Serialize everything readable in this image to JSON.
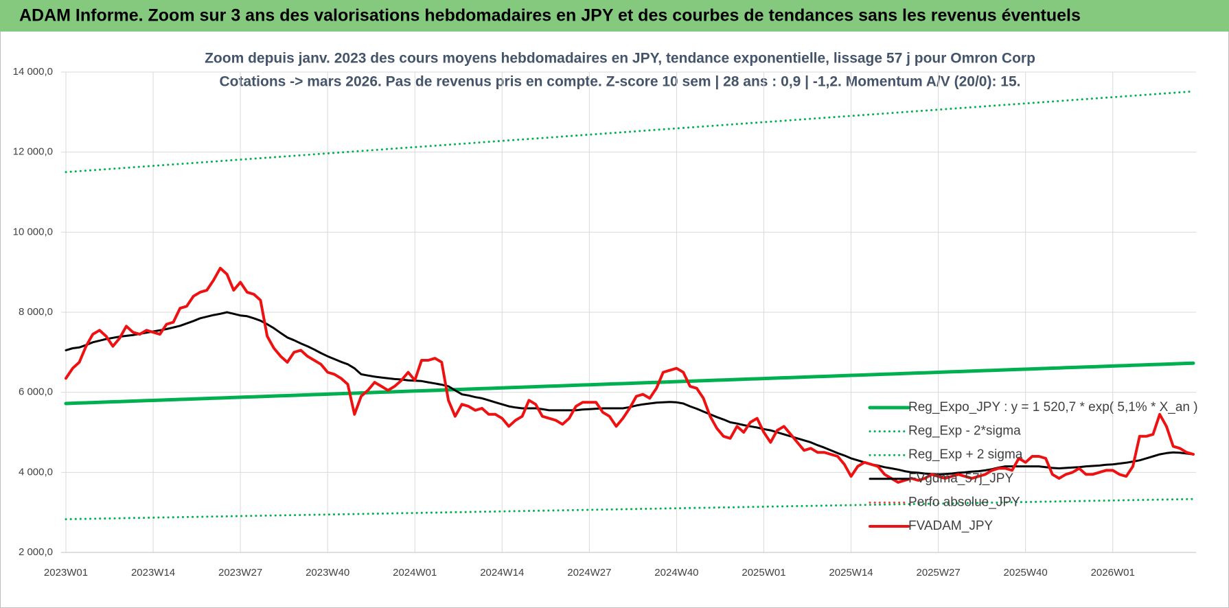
{
  "header": {
    "title": "ADAM Informe. Zoom sur 3 ans des valorisations hebdomadaires en JPY et des courbes de tendances sans les revenus éventuels"
  },
  "chart_data": {
    "type": "line",
    "title": "Zoom depuis janv. 2023 des cours moyens hebdomadaires en JPY, tendance exponentielle, lissage 57 j pour Omron Corp",
    "subtitle": "Cotations -> mars 2026. Pas de revenus pris en compte. Z-score 10 sem | 28 ans : 0,9 | -1,2. Momentum A/V (20/0): 15.",
    "ylim": [
      2000,
      14000
    ],
    "yticks": [
      {
        "value": 2000,
        "label": "2 000,0"
      },
      {
        "value": 4000,
        "label": "4 000,0"
      },
      {
        "value": 6000,
        "label": "6 000,0"
      },
      {
        "value": 8000,
        "label": "8 000,0"
      },
      {
        "value": 10000,
        "label": "10 000,0"
      },
      {
        "value": 12000,
        "label": "12 000,0"
      },
      {
        "value": 14000,
        "label": "14 000,0"
      }
    ],
    "grid": true,
    "legend": "right",
    "categories": [
      "2023W01",
      null,
      null,
      null,
      null,
      null,
      null,
      null,
      null,
      null,
      null,
      null,
      null,
      "2023W14",
      null,
      null,
      null,
      null,
      null,
      null,
      null,
      null,
      null,
      null,
      null,
      null,
      "2023W27",
      null,
      null,
      null,
      null,
      null,
      null,
      null,
      null,
      null,
      null,
      null,
      null,
      "2023W40",
      null,
      null,
      null,
      null,
      null,
      null,
      null,
      null,
      null,
      null,
      null,
      null,
      "2024W01",
      null,
      null,
      null,
      null,
      null,
      null,
      null,
      null,
      null,
      null,
      null,
      null,
      "2024W14",
      null,
      null,
      null,
      null,
      null,
      null,
      null,
      null,
      null,
      null,
      null,
      null,
      "2024W27",
      null,
      null,
      null,
      null,
      null,
      null,
      null,
      null,
      null,
      null,
      null,
      null,
      "2024W40",
      null,
      null,
      null,
      null,
      null,
      null,
      null,
      null,
      null,
      null,
      null,
      null,
      "2025W01",
      null,
      null,
      null,
      null,
      null,
      null,
      null,
      null,
      null,
      null,
      null,
      null,
      "2025W14",
      null,
      null,
      null,
      null,
      null,
      null,
      null,
      null,
      null,
      null,
      null,
      null,
      "2025W27",
      null,
      null,
      null,
      null,
      null,
      null,
      null,
      null,
      null,
      null,
      null,
      null,
      "2025W40",
      null,
      null,
      null,
      null,
      null,
      null,
      null,
      null,
      null,
      null,
      null,
      null,
      "2026W01",
      null,
      null,
      null,
      null,
      null,
      null,
      null,
      null,
      null,
      null,
      null,
      null
    ],
    "series": [
      {
        "name": "Reg_Expo_JPY : y = 1 520,7 * exp( 5,1% *  X_an )",
        "color": "#00b050",
        "style": "solid",
        "width": 5,
        "values": [
          5720,
          5726,
          5732,
          5738,
          5744,
          5750,
          5756,
          5762,
          5768,
          5774,
          5780,
          5786,
          5792,
          5798,
          5804,
          5810,
          5816,
          5822,
          5828,
          5834,
          5840,
          5846,
          5852,
          5858,
          5864,
          5870,
          5876,
          5882,
          5888,
          5894,
          5900,
          5906,
          5912,
          5918,
          5924,
          5930,
          5936,
          5942,
          5948,
          5954,
          5960,
          5966,
          5972,
          5978,
          5984,
          5990,
          5996,
          6002,
          6008,
          6014,
          6020,
          6026,
          6032,
          6038,
          6044,
          6050,
          6056,
          6062,
          6068,
          6074,
          6080,
          6086,
          6092,
          6098,
          6104,
          6110,
          6116,
          6122,
          6128,
          6134,
          6140,
          6146,
          6152,
          6158,
          6164,
          6170,
          6176,
          6182,
          6188,
          6194,
          6200,
          6206,
          6212,
          6218,
          6224,
          6230,
          6236,
          6242,
          6248,
          6254,
          6260,
          6266,
          6272,
          6278,
          6284,
          6290,
          6296,
          6302,
          6308,
          6314,
          6320,
          6326,
          6332,
          6338,
          6344,
          6350,
          6356,
          6362,
          6368,
          6374,
          6380,
          6386,
          6392,
          6398,
          6404,
          6410,
          6416,
          6422,
          6428,
          6434,
          6440,
          6446,
          6452,
          6458,
          6464,
          6470,
          6476,
          6482,
          6488,
          6494,
          6500,
          6506,
          6512,
          6518,
          6524,
          6530,
          6536,
          6542,
          6548,
          6554,
          6560,
          6566,
          6572,
          6578,
          6584,
          6590,
          6596,
          6602,
          6608,
          6614,
          6620,
          6626,
          6632,
          6638,
          6644,
          6650,
          6656,
          6662,
          6668,
          6674,
          6680,
          6686,
          6692,
          6698,
          6704,
          6710,
          6716,
          6722,
          6728
        ]
      },
      {
        "name": "Reg_Exp - 2*sigma",
        "color": "#00b050",
        "style": "dotted",
        "width": 3,
        "values": [
          2830,
          2833,
          2836,
          2839,
          2842,
          2845,
          2848,
          2851,
          2854,
          2857,
          2860,
          2863,
          2866,
          2869,
          2872,
          2875,
          2878,
          2881,
          2884,
          2887,
          2890,
          2893,
          2896,
          2899,
          2902,
          2905,
          2908,
          2911,
          2914,
          2917,
          2920,
          2923,
          2926,
          2929,
          2932,
          2935,
          2938,
          2941,
          2944,
          2947,
          2950,
          2953,
          2956,
          2959,
          2962,
          2965,
          2968,
          2971,
          2974,
          2977,
          2980,
          2983,
          2986,
          2989,
          2992,
          2995,
          2998,
          3001,
          3004,
          3007,
          3010,
          3013,
          3016,
          3019,
          3022,
          3025,
          3028,
          3031,
          3034,
          3037,
          3040,
          3043,
          3046,
          3049,
          3052,
          3055,
          3058,
          3061,
          3064,
          3067,
          3070,
          3073,
          3076,
          3079,
          3082,
          3085,
          3088,
          3091,
          3094,
          3097,
          3100,
          3103,
          3106,
          3109,
          3112,
          3115,
          3118,
          3121,
          3124,
          3127,
          3130,
          3133,
          3136,
          3139,
          3142,
          3145,
          3148,
          3151,
          3154,
          3157,
          3160,
          3163,
          3166,
          3169,
          3172,
          3175,
          3178,
          3181,
          3184,
          3187,
          3190,
          3193,
          3196,
          3199,
          3202,
          3205,
          3208,
          3211,
          3214,
          3217,
          3220,
          3223,
          3226,
          3229,
          3232,
          3235,
          3238,
          3241,
          3244,
          3247,
          3250,
          3253,
          3256,
          3259,
          3262,
          3265,
          3268,
          3271,
          3274,
          3277,
          3280,
          3283,
          3286,
          3289,
          3292,
          3295,
          3298,
          3301,
          3304,
          3307,
          3310,
          3313,
          3316,
          3319,
          3322,
          3325,
          3328,
          3331,
          3334
        ]
      },
      {
        "name": "Reg_Exp + 2 sigma",
        "color": "#00b050",
        "style": "dotted",
        "width": 3,
        "values": [
          11500,
          11512,
          11524,
          11536,
          11548,
          11560,
          11572,
          11584,
          11596,
          11608,
          11620,
          11632,
          11644,
          11656,
          11668,
          11680,
          11692,
          11704,
          11716,
          11728,
          11740,
          11752,
          11764,
          11776,
          11788,
          11800,
          11812,
          11824,
          11836,
          11848,
          11860,
          11872,
          11884,
          11896,
          11908,
          11920,
          11932,
          11944,
          11956,
          11968,
          11980,
          11992,
          12004,
          12016,
          12028,
          12040,
          12052,
          12064,
          12076,
          12088,
          12100,
          12112,
          12124,
          12136,
          12148,
          12160,
          12172,
          12184,
          12196,
          12208,
          12220,
          12232,
          12244,
          12256,
          12268,
          12280,
          12292,
          12304,
          12316,
          12328,
          12340,
          12352,
          12364,
          12376,
          12388,
          12400,
          12412,
          12424,
          12436,
          12448,
          12460,
          12472,
          12484,
          12496,
          12508,
          12520,
          12532,
          12544,
          12556,
          12568,
          12580,
          12592,
          12604,
          12616,
          12628,
          12640,
          12652,
          12664,
          12676,
          12688,
          12700,
          12712,
          12724,
          12736,
          12748,
          12760,
          12772,
          12784,
          12796,
          12808,
          12820,
          12832,
          12844,
          12856,
          12868,
          12880,
          12892,
          12904,
          12916,
          12928,
          12940,
          12952,
          12964,
          12976,
          12988,
          13000,
          13012,
          13024,
          13036,
          13048,
          13060,
          13072,
          13084,
          13096,
          13108,
          13120,
          13132,
          13144,
          13156,
          13168,
          13180,
          13192,
          13204,
          13216,
          13228,
          13240,
          13252,
          13264,
          13276,
          13288,
          13300,
          13312,
          13324,
          13336,
          13348,
          13360,
          13372,
          13384,
          13396,
          13408,
          13420,
          13432,
          13444,
          13456,
          13468,
          13480,
          13492,
          13504,
          13516
        ]
      },
      {
        "name": "FVgdma_57j_JPY",
        "color": "#000000",
        "style": "solid",
        "width": 3,
        "values": [
          7050,
          7100,
          7120,
          7180,
          7250,
          7290,
          7330,
          7360,
          7390,
          7410,
          7430,
          7460,
          7490,
          7520,
          7550,
          7580,
          7620,
          7660,
          7720,
          7780,
          7850,
          7890,
          7930,
          7960,
          8000,
          7960,
          7920,
          7900,
          7850,
          7790,
          7700,
          7600,
          7480,
          7370,
          7300,
          7220,
          7150,
          7070,
          6980,
          6900,
          6830,
          6760,
          6700,
          6600,
          6450,
          6420,
          6390,
          6370,
          6350,
          6330,
          6320,
          6300,
          6290,
          6280,
          6250,
          6220,
          6190,
          6150,
          6050,
          5950,
          5920,
          5880,
          5850,
          5800,
          5750,
          5700,
          5650,
          5620,
          5600,
          5600,
          5600,
          5580,
          5550,
          5550,
          5550,
          5550,
          5550,
          5570,
          5580,
          5590,
          5600,
          5600,
          5600,
          5600,
          5630,
          5670,
          5700,
          5720,
          5740,
          5750,
          5760,
          5750,
          5720,
          5650,
          5590,
          5520,
          5450,
          5380,
          5320,
          5250,
          5220,
          5180,
          5150,
          5120,
          5080,
          5050,
          5000,
          4950,
          4900,
          4850,
          4800,
          4750,
          4680,
          4620,
          4550,
          4480,
          4420,
          4350,
          4300,
          4250,
          4200,
          4170,
          4130,
          4100,
          4070,
          4030,
          4000,
          3990,
          3970,
          3960,
          3950,
          3960,
          3970,
          3990,
          4000,
          4020,
          4030,
          4050,
          4080,
          4120,
          4150,
          4150,
          4150,
          4150,
          4150,
          4150,
          4130,
          4110,
          4100,
          4110,
          4120,
          4130,
          4150,
          4160,
          4170,
          4190,
          4200,
          4220,
          4240,
          4270,
          4300,
          4350,
          4400,
          4450,
          4480,
          4500,
          4490,
          4470,
          4450
        ]
      },
      {
        "name": "Perfo absolue_JPY",
        "color": "#e8453c",
        "style": "dotted",
        "width": 3
      },
      {
        "name": "FVADAM_JPY",
        "color": "#ee1111",
        "style": "solid",
        "width": 4,
        "values": [
          6350,
          6600,
          6750,
          7150,
          7450,
          7550,
          7400,
          7150,
          7350,
          7650,
          7500,
          7450,
          7550,
          7500,
          7450,
          7700,
          7750,
          8100,
          8150,
          8400,
          8500,
          8550,
          8800,
          9100,
          8950,
          8550,
          8750,
          8500,
          8450,
          8300,
          7400,
          7100,
          6900,
          6750,
          7000,
          7050,
          6900,
          6800,
          6700,
          6500,
          6450,
          6350,
          6200,
          5450,
          5900,
          6050,
          6250,
          6150,
          6050,
          6150,
          6300,
          6500,
          6300,
          6800,
          6800,
          6850,
          6750,
          5800,
          5400,
          5700,
          5650,
          5550,
          5600,
          5450,
          5450,
          5350,
          5150,
          5300,
          5400,
          5800,
          5700,
          5400,
          5350,
          5300,
          5200,
          5350,
          5650,
          5750,
          5750,
          5750,
          5500,
          5400,
          5150,
          5350,
          5600,
          5900,
          5950,
          5850,
          6100,
          6500,
          6550,
          6600,
          6500,
          6150,
          6100,
          5850,
          5400,
          5100,
          4900,
          4850,
          5150,
          5000,
          5250,
          5350,
          5000,
          4750,
          5050,
          5150,
          4950,
          4750,
          4550,
          4600,
          4500,
          4500,
          4450,
          4400,
          4200,
          3900,
          4150,
          4250,
          4200,
          4150,
          3950,
          3850,
          3750,
          3800,
          3850,
          3800,
          3850,
          3950,
          3900,
          3850,
          3900,
          3950,
          3900,
          3850,
          3900,
          3950,
          4050,
          4100,
          4100,
          4050,
          4350,
          4250,
          4400,
          4400,
          4350,
          3950,
          3850,
          3950,
          4000,
          4100,
          3950,
          3950,
          4000,
          4050,
          4050,
          3950,
          3900,
          4150,
          4900,
          4900,
          4950,
          5450,
          5150,
          4650,
          4600,
          4500,
          4450
        ]
      }
    ]
  }
}
